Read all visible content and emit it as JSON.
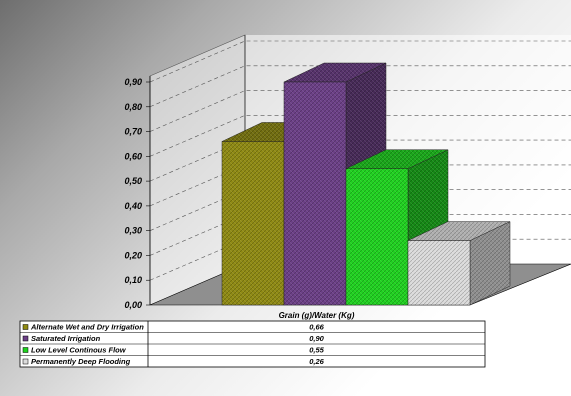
{
  "chart_data": {
    "type": "bar",
    "categories": [
      "Grain (g)/Water (Kg)"
    ],
    "series": [
      {
        "name": "Alternate Wet and Dry Irrigation",
        "values": [
          0.66
        ],
        "display_value": "0,66",
        "color": "#8f8a12"
      },
      {
        "name": "Saturated Irrigation",
        "values": [
          0.9
        ],
        "display_value": "0,90",
        "color": "#6b3f86"
      },
      {
        "name": "Low Level Continous  Flow",
        "values": [
          0.55
        ],
        "display_value": "0,55",
        "color": "#1fd21f"
      },
      {
        "name": "Permanently Deep Flooding",
        "values": [
          0.26
        ],
        "display_value": "0,26",
        "color": "#dcdcdc"
      }
    ],
    "ylim": [
      0,
      0.9
    ],
    "yticks": [
      "0,00",
      "0,10",
      "0,20",
      "0,30",
      "0,40",
      "0,50",
      "0,60",
      "0,70",
      "0,80",
      "0,90"
    ],
    "grid": true,
    "legend": "data-table-bottom",
    "title": "",
    "xlabel": "",
    "ylabel": ""
  }
}
